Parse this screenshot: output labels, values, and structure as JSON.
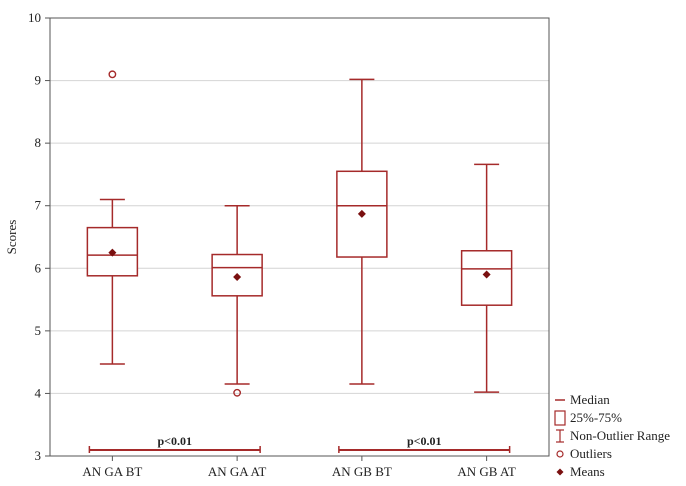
{
  "chart_data": {
    "type": "boxplot",
    "ylabel": "Scores",
    "ylim": [
      3,
      10
    ],
    "yticks": [
      3,
      4,
      5,
      6,
      7,
      8,
      9,
      10
    ],
    "grid": "horizontal",
    "legend_position": "bottom-right",
    "colors": {
      "box": "#a52a2a",
      "mean": "#7a1010",
      "grid": "#d4d4d4",
      "axis": "#555555"
    },
    "categories": [
      "AN GA BT",
      "AN GA AT",
      "AN GB BT",
      "AN GB AT"
    ],
    "boxes": [
      {
        "label": "AN GA BT",
        "whisker_low": 4.47,
        "q1": 5.88,
        "median": 6.21,
        "q3": 6.65,
        "whisker_high": 7.1,
        "mean": 6.25,
        "outliers": [
          9.1
        ]
      },
      {
        "label": "AN GA AT",
        "whisker_low": 4.15,
        "q1": 5.56,
        "median": 6.01,
        "q3": 6.22,
        "whisker_high": 7.0,
        "mean": 5.86,
        "outliers": [
          4.01
        ]
      },
      {
        "label": "AN GB BT",
        "whisker_low": 4.15,
        "q1": 6.18,
        "median": 7.0,
        "q3": 7.55,
        "whisker_high": 9.02,
        "mean": 6.87,
        "outliers": []
      },
      {
        "label": "AN GB AT",
        "whisker_low": 4.02,
        "q1": 5.41,
        "median": 5.99,
        "q3": 6.28,
        "whisker_high": 7.66,
        "mean": 5.9,
        "outliers": []
      }
    ],
    "significance": [
      {
        "from": 0,
        "to": 1,
        "label": "p<0.01"
      },
      {
        "from": 2,
        "to": 3,
        "label": "p<0.01"
      }
    ],
    "legend": [
      {
        "symbol": "median-line",
        "label": "Median"
      },
      {
        "symbol": "box",
        "label": "25%-75%"
      },
      {
        "symbol": "whisker",
        "label": "Non-Outlier Range"
      },
      {
        "symbol": "outlier",
        "label": "Outliers"
      },
      {
        "symbol": "mean",
        "label": "Means"
      }
    ]
  }
}
